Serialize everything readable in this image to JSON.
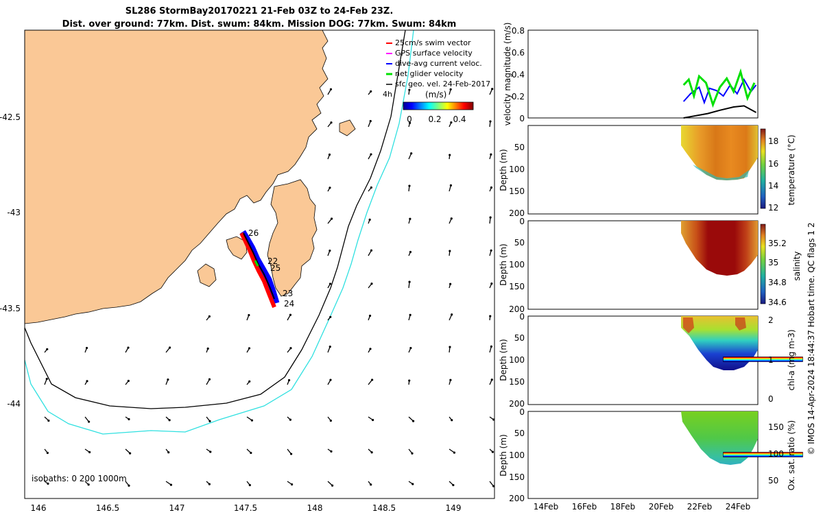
{
  "title": {
    "line1": "SL286 StormBay20170221 21-Feb 03Z to 24-Feb 23Z.",
    "line2": "Dist. over ground: 77km. Dist. swum: 84km. Mission DOG: 77km. Swum: 84km"
  },
  "colors": {
    "land": "#FAC896",
    "isobath_200": "#000000",
    "isobath_1000": "#2EE0E0",
    "swim_vector": "#FF0000",
    "gps_surface": "#FF00FF",
    "dive_avg": "#0000FF",
    "net_glider": "#00E000",
    "sfc_geo": "#000000"
  },
  "map": {
    "legend": [
      "25cm/s swim vector",
      "GPS surface velocity",
      "dive-avg current veloc.",
      "net glider velocity",
      "sfc geo. vel. 24-Feb-2017"
    ],
    "legend_extra": "4h",
    "colorbar_label": "(m/s)",
    "colorbar_ticks": [
      "0",
      "0.2",
      "0.4"
    ],
    "isobath_note": "isobaths: 0   200  1000m",
    "xticks": [
      "146",
      "146.5",
      "147",
      "147.5",
      "148",
      "148.5",
      "149"
    ],
    "yticks": [
      "-42.5",
      "-43",
      "-43.5",
      "-44"
    ],
    "track_labels": [
      "26",
      "22",
      "25",
      "23",
      "24"
    ]
  },
  "panels": {
    "velocity_ylabel": "velocity magnitude (m/s)",
    "velocity_yticks": [
      "0.8",
      "0.6",
      "0.4",
      "0.2",
      "0"
    ],
    "depth_label": "Depth (m)",
    "depth_ticks": [
      "0",
      "50",
      "100",
      "150",
      "200"
    ],
    "xticks": [
      "14Feb",
      "16Feb",
      "18Feb",
      "20Feb",
      "22Feb",
      "24Feb"
    ],
    "temperature": {
      "label": "temperature (°C)",
      "ticks": [
        "18",
        "16",
        "14",
        "12"
      ]
    },
    "salinity": {
      "label": "salinity",
      "ticks": [
        "35.2",
        "35",
        "34.8",
        "34.6"
      ]
    },
    "chla": {
      "label": "chl-a (mg m-3)",
      "ticks": [
        "2",
        "1",
        "0"
      ]
    },
    "oxygen": {
      "label": "Ox. sat. ratio (%)",
      "ticks": [
        "150",
        "100",
        "50"
      ]
    },
    "side_note": "© IMOS 14-Apr-2024 18:44:37 Hobart time. QC flags 1  2"
  },
  "chart_data": [
    {
      "type": "line",
      "title": "SL286 StormBay20170221 21-Feb 03Z to 24-Feb 23Z.",
      "xlabel": "",
      "ylabel": "",
      "xlim": [
        145.9,
        149.3
      ],
      "ylim": [
        -44.5,
        -42.05
      ],
      "series": [
        {
          "name": "glider track",
          "x": [
            147.49,
            147.53,
            147.56,
            147.6,
            147.63,
            147.66,
            147.69,
            147.72
          ],
          "y": [
            -43.11,
            -43.19,
            -43.26,
            -43.33,
            -43.38,
            -43.43,
            -43.46,
            -43.5
          ]
        }
      ]
    },
    {
      "type": "line",
      "xlabel": "",
      "ylabel": "velocity magnitude (m/s)",
      "xlim": [
        12.1,
        25.4
      ],
      "ylim": [
        0,
        0.8
      ],
      "series": [
        {
          "name": "dive-avg current veloc.",
          "x": [
            21.1,
            21.5,
            22.0,
            22.3,
            22.6,
            23.0,
            23.4,
            23.8,
            24.2,
            24.6,
            25.0,
            25.3
          ],
          "y": [
            0.15,
            0.22,
            0.28,
            0.14,
            0.27,
            0.25,
            0.2,
            0.3,
            0.22,
            0.35,
            0.24,
            0.3
          ]
        },
        {
          "name": "net glider velocity",
          "x": [
            21.1,
            21.4,
            21.7,
            22.0,
            22.4,
            22.8,
            23.2,
            23.6,
            24.0,
            24.4,
            24.8,
            25.2
          ],
          "y": [
            0.3,
            0.35,
            0.2,
            0.38,
            0.32,
            0.12,
            0.28,
            0.36,
            0.24,
            0.42,
            0.18,
            0.32
          ]
        },
        {
          "name": "sfc geo. vel. 24-Feb-2017",
          "x": [
            21.1,
            21.8,
            22.5,
            23.2,
            24.0,
            24.6,
            25.3
          ],
          "y": [
            0.0,
            0.02,
            0.04,
            0.07,
            0.1,
            0.11,
            0.05
          ]
        }
      ]
    },
    {
      "type": "heatmap",
      "ylabel": "Depth (m)",
      "colorbar_label": "temperature (°C)",
      "clim": [
        11.8,
        19
      ],
      "x": [
        21.1,
        25.4
      ],
      "depth_range": [
        0,
        125
      ]
    },
    {
      "type": "heatmap",
      "ylabel": "Depth (m)",
      "colorbar_label": "salinity",
      "clim": [
        34.55,
        35.35
      ],
      "x": [
        21.1,
        25.4
      ],
      "depth_range": [
        0,
        125
      ]
    },
    {
      "type": "heatmap",
      "ylabel": "Depth (m)",
      "colorbar_label": "chl-a (mg m-3)",
      "clim": [
        0,
        2
      ],
      "x": [
        21.1,
        25.4
      ],
      "depth_range": [
        0,
        125
      ]
    },
    {
      "type": "heatmap",
      "ylabel": "Depth (m)",
      "colorbar_label": "Ox. sat. ratio (%)",
      "clim": [
        25,
        175
      ],
      "x": [
        21.1,
        25.4
      ],
      "depth_range": [
        0,
        125
      ]
    }
  ]
}
